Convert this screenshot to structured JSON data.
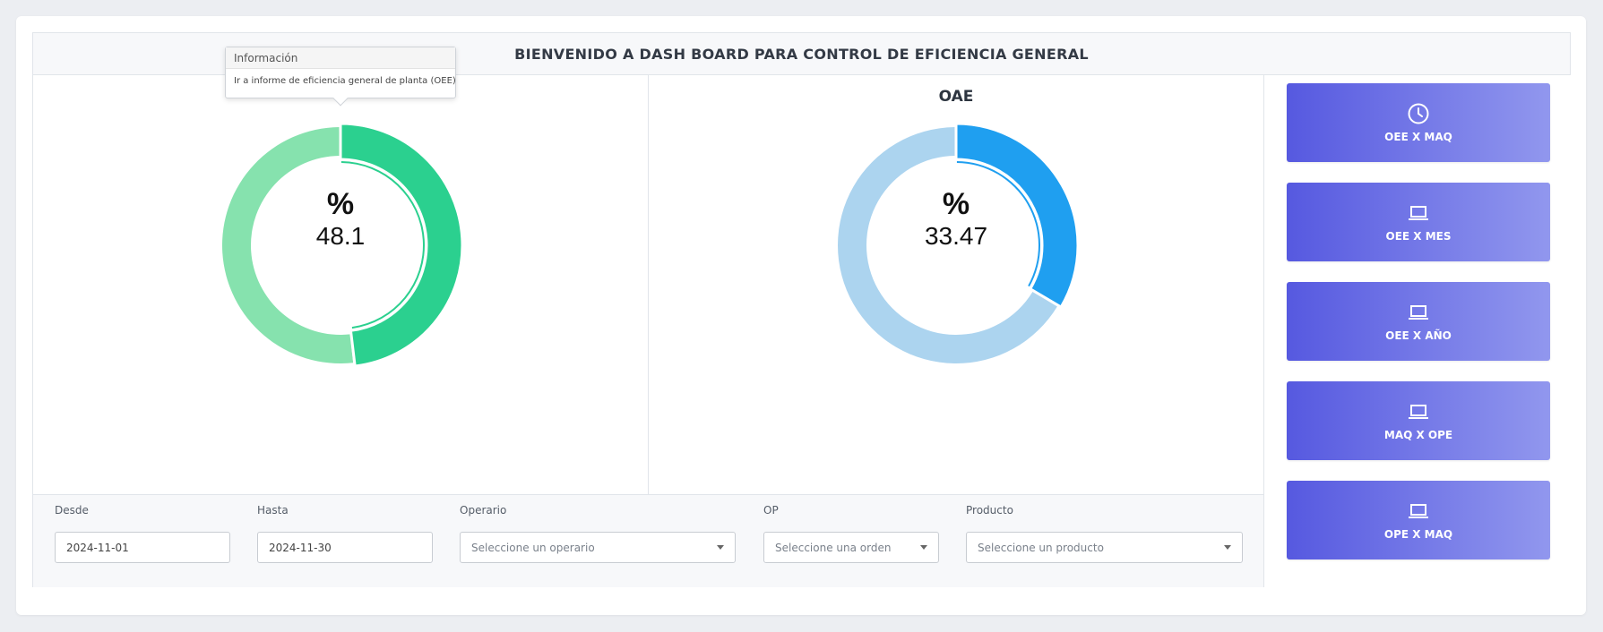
{
  "header": {
    "title": "BIENVENIDO A DASH BOARD PARA CONTROL DE EFICIENCIA GENERAL"
  },
  "tooltip": {
    "title": "Información",
    "body": "Ir a informe de eficiencia general de planta (OEE)"
  },
  "charts": [
    {
      "label": "",
      "symbol": "%",
      "value": "48.1",
      "fraction": 0.481,
      "color_main": "#2bd08f",
      "color_rest": "#86e2ae"
    },
    {
      "label": "OAE",
      "symbol": "%",
      "value": "33.47",
      "fraction": 0.3347,
      "color_main": "#1f9ff0",
      "color_rest": "#acd4ef"
    }
  ],
  "filters": {
    "desde": {
      "label": "Desde",
      "value": "2024-11-01"
    },
    "hasta": {
      "label": "Hasta",
      "value": "2024-11-30"
    },
    "operario": {
      "label": "Operario",
      "placeholder": "Seleccione un operario"
    },
    "op": {
      "label": "OP",
      "placeholder": "Seleccione una orden"
    },
    "producto": {
      "label": "Producto",
      "placeholder": "Seleccione un producto"
    }
  },
  "nav_buttons": [
    {
      "label": "OEE X MAQ",
      "icon": "clock-icon"
    },
    {
      "label": "OEE X MES",
      "icon": "laptop-icon"
    },
    {
      "label": "OEE X AÑO",
      "icon": "laptop-icon"
    },
    {
      "label": "MAQ X OPE",
      "icon": "laptop-icon"
    },
    {
      "label": "OPE X MAQ",
      "icon": "laptop-icon"
    }
  ]
}
